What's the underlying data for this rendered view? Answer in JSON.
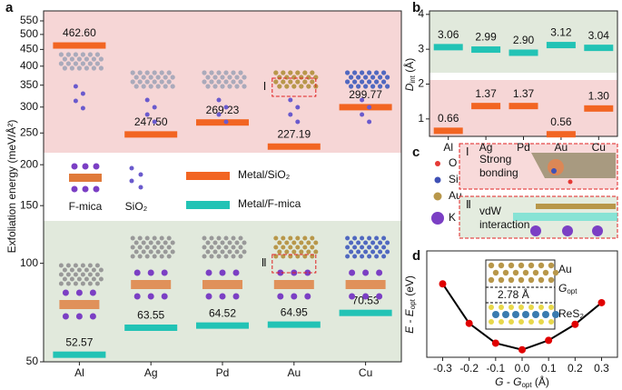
{
  "chart_data": [
    {
      "type": "level",
      "panel": "a",
      "ylabel": "Exfoliation energy (meV/Å²)",
      "categories": [
        "Al",
        "Ag",
        "Pd",
        "Au",
        "Cu"
      ],
      "log_y": true,
      "ylim": [
        50,
        590
      ],
      "yticks": [
        50,
        100,
        150,
        200,
        250,
        300,
        350,
        400,
        450,
        500,
        550
      ],
      "series": [
        {
          "name": "Metal/SiO₂",
          "color": "#f26522",
          "values": [
            462.6,
            247.5,
            269.23,
            227.19,
            299.77
          ],
          "value_labels": [
            "462.60",
            "247.50",
            "269.23",
            "227.19",
            "299.77"
          ]
        },
        {
          "name": "Metal/F-mica",
          "color": "#22c3b5",
          "values": [
            52.57,
            63.55,
            64.52,
            64.95,
            70.53
          ]
        }
      ],
      "legend_items": [
        "F-mica",
        "SiO₂"
      ],
      "annotations": [
        "Ⅰ",
        "Ⅱ"
      ]
    },
    {
      "type": "level",
      "panel": "b",
      "ylabel": [
        "D",
        "int",
        " (Å)"
      ],
      "categories": [
        "Al",
        "Ag",
        "Pd",
        "Au",
        "Cu"
      ],
      "log_y": false,
      "ylim": [
        0.5,
        4.1
      ],
      "yticks": [
        1,
        2,
        3,
        4
      ],
      "series": [
        {
          "color": "#22c3b5",
          "values": [
            3.06,
            2.99,
            2.9,
            3.12,
            3.04
          ],
          "value_labels": [
            "3.06",
            "2.99",
            "2.90",
            "3.12",
            "3.04"
          ]
        },
        {
          "color": "#f26522",
          "values": [
            0.66,
            1.37,
            1.37,
            0.56,
            1.3
          ],
          "value_labels": [
            "0.66",
            "1.37",
            "1.37",
            "0.56",
            "1.30"
          ]
        }
      ]
    },
    {
      "type": "line",
      "panel": "d",
      "ylabel": [
        "E - E",
        "opt",
        " (eV)"
      ],
      "xlabel": [
        "G - G",
        "opt",
        " (Å)"
      ],
      "x": [
        -0.3,
        -0.2,
        -0.1,
        0,
        0.1,
        0.2,
        0.3
      ],
      "values": [
        0.7,
        0.28,
        0.07,
        0,
        0.1,
        0.27,
        0.5
      ],
      "color": "#e00000",
      "xlim": [
        -0.36,
        0.36
      ],
      "ylim": [
        -0.08,
        1.05
      ],
      "xticks": [
        -0.3,
        -0.2,
        -0.1,
        {
          "value": 0,
          "label": "0.0"
        },
        0.1,
        0.2,
        0.3
      ],
      "inset": {
        "top": "Au",
        "plane": [
          "G",
          "opt"
        ],
        "distance": "2.78 Å",
        "bottom": "ReS₂"
      }
    }
  ],
  "diagram": {
    "panel": "c",
    "legend": [
      "O",
      "Si",
      "Au",
      "K"
    ],
    "boxes": [
      {
        "numeral": "Ⅰ",
        "lines": [
          "Strong",
          "bonding"
        ]
      },
      {
        "numeral": "Ⅱ",
        "lines": [
          "vdW",
          "interaction"
        ]
      }
    ]
  }
}
